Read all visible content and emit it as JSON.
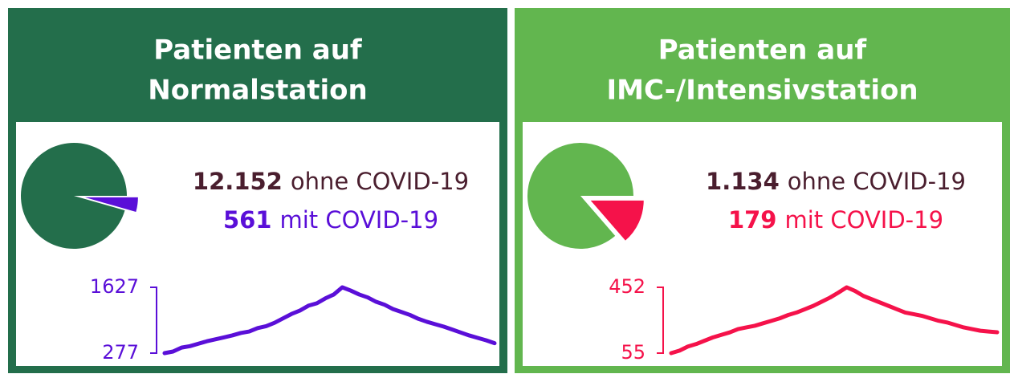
{
  "chart_data": [
    {
      "type": "pie",
      "title": [
        "Patienten auf",
        "Normalstation"
      ],
      "categories": [
        "ohne COVID-19",
        "mit COVID-19"
      ],
      "values": [
        12152,
        561
      ],
      "value_labels": [
        "12.152",
        "561"
      ],
      "colors": [
        "#236e4b",
        "#5a0fd8"
      ],
      "text_colors": [
        "#4a1e2e",
        "#5a0fd8"
      ],
      "header_color": "#236e4b"
    },
    {
      "type": "line",
      "values": [
        277,
        310,
        390,
        420,
        470,
        520,
        560,
        600,
        640,
        690,
        720,
        790,
        830,
        900,
        990,
        1080,
        1150,
        1250,
        1300,
        1400,
        1480,
        1627,
        1560,
        1480,
        1420,
        1330,
        1270,
        1180,
        1120,
        1060,
        980,
        920,
        870,
        820,
        760,
        700,
        640,
        590,
        540,
        480
      ],
      "ylim": [
        277,
        1627
      ],
      "yticks": [
        277,
        1627
      ],
      "color": "#5a0fd8"
    },
    {
      "type": "pie",
      "title": [
        "Patienten auf",
        "IMC-/Intensivstation"
      ],
      "categories": [
        "ohne COVID-19",
        "mit COVID-19"
      ],
      "values": [
        1134,
        179
      ],
      "value_labels": [
        "1.134",
        "179"
      ],
      "colors": [
        "#62b64f",
        "#f5124a"
      ],
      "text_colors": [
        "#4a1e2e",
        "#f5124a"
      ],
      "header_color": "#62b64f"
    },
    {
      "type": "line",
      "values": [
        55,
        70,
        95,
        110,
        130,
        150,
        165,
        180,
        200,
        210,
        220,
        235,
        250,
        265,
        285,
        300,
        320,
        340,
        365,
        390,
        420,
        452,
        430,
        400,
        380,
        360,
        340,
        320,
        300,
        290,
        280,
        265,
        250,
        240,
        225,
        210,
        200,
        190,
        185,
        181
      ],
      "ylim": [
        55,
        452
      ],
      "yticks": [
        55,
        452
      ],
      "color": "#f5124a"
    }
  ]
}
